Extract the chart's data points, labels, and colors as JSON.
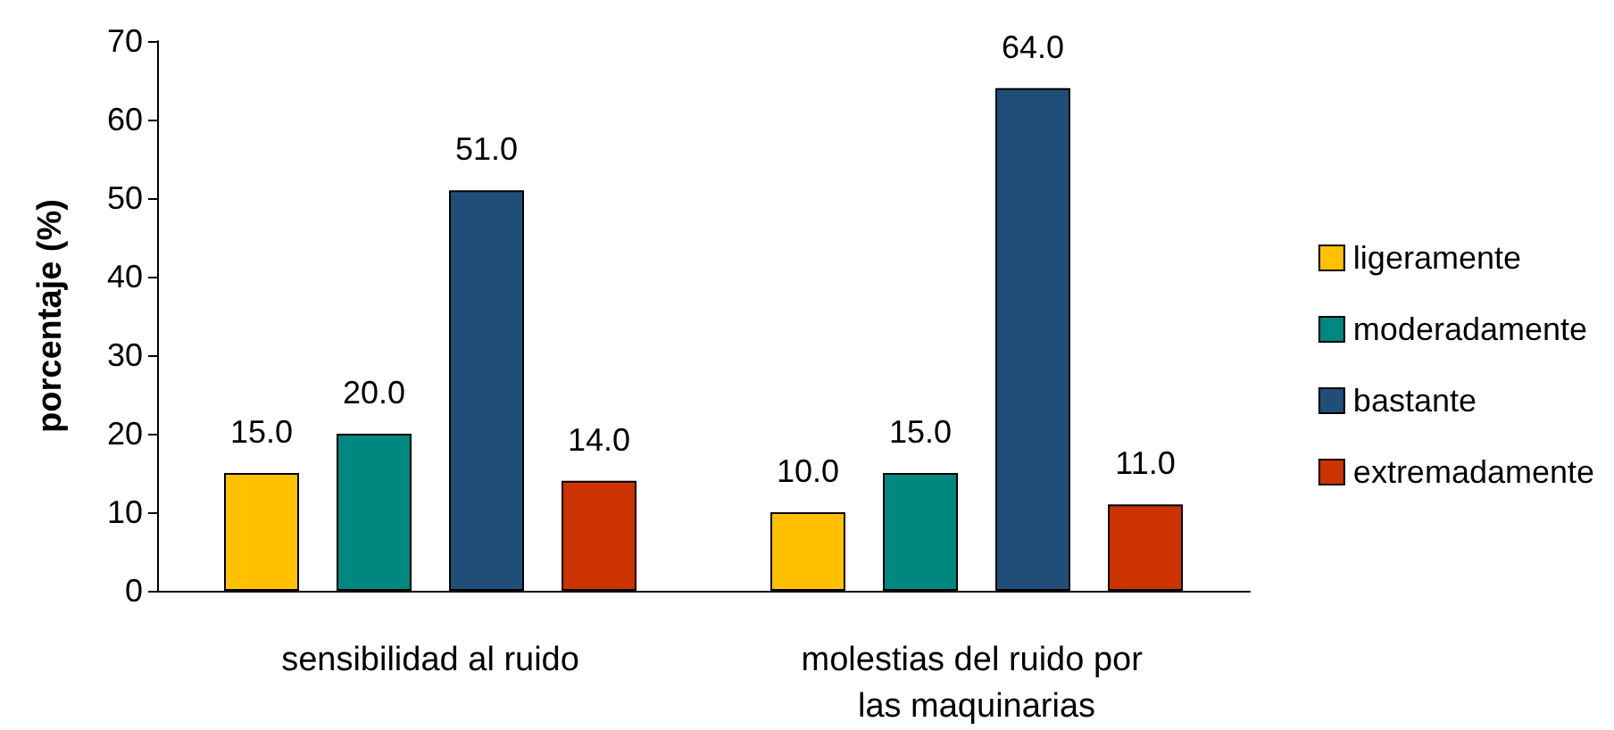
{
  "chart_data": {
    "type": "bar",
    "ylabel": "porcentaje (%)",
    "categories": [
      "sensibilidad al ruido",
      "molestias del ruido por las maquinarias"
    ],
    "series": [
      {
        "name": "ligeramente",
        "color": "#ffc000",
        "values": [
          15,
          10
        ],
        "value_labels": [
          "15.0",
          "10.0"
        ]
      },
      {
        "name": "moderadamente",
        "color": "#00877f",
        "values": [
          20,
          15
        ],
        "value_labels": [
          "20.0",
          "15.0"
        ]
      },
      {
        "name": "bastante",
        "color": "#1f4e79",
        "values": [
          51,
          64
        ],
        "value_labels": [
          "51.0",
          "64.0"
        ]
      },
      {
        "name": "extremadamente",
        "color": "#cc3300",
        "values": [
          14,
          11
        ],
        "value_labels": [
          "14.0",
          "11.0"
        ]
      }
    ],
    "ylim": [
      0,
      70
    ],
    "yticks": [
      0,
      10,
      20,
      30,
      40,
      50,
      60,
      70
    ],
    "grid": false,
    "legend": "right"
  }
}
